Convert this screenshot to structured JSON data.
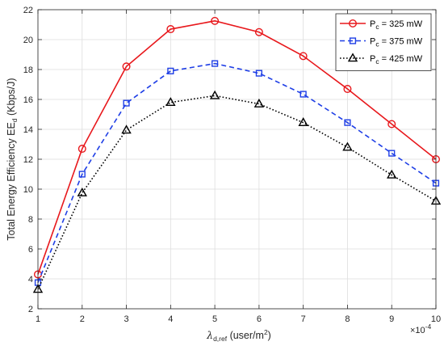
{
  "chart_data": {
    "type": "line",
    "xlabel": {
      "base": "λ",
      "sub": "d,ref",
      "text": " (user/m",
      "sup": "2",
      "end": ")"
    },
    "ylabel": {
      "text": "Total Energy Efficiency EE",
      "sub": "d",
      "end": " (Kbps/J)"
    },
    "x_multiplier": {
      "base": "×10",
      "exp": "-4"
    },
    "x": [
      1,
      2,
      3,
      4,
      5,
      6,
      7,
      8,
      9,
      10
    ],
    "xlim": [
      1,
      10
    ],
    "ylim": [
      2,
      22
    ],
    "xticks": [
      "1",
      "2",
      "3",
      "4",
      "5",
      "6",
      "7",
      "8",
      "9",
      "10"
    ],
    "yticks": [
      "2",
      "4",
      "6",
      "8",
      "10",
      "12",
      "14",
      "16",
      "18",
      "20",
      "22"
    ],
    "grid": true,
    "legend_position": "top-right",
    "series": [
      {
        "name": {
          "base": "P",
          "sub": "c",
          "rest": " = 325 mW"
        },
        "color": "#e8181c",
        "marker": "circle",
        "line": "solid",
        "values": [
          4.3,
          12.7,
          18.2,
          20.7,
          21.25,
          20.5,
          18.9,
          16.7,
          14.35,
          12.0
        ]
      },
      {
        "name": {
          "base": "P",
          "sub": "c",
          "rest": " = 375 mW"
        },
        "color": "#1f3fe6",
        "marker": "square",
        "line": "dashed",
        "values": [
          3.75,
          11.0,
          15.75,
          17.9,
          18.4,
          17.75,
          16.35,
          14.45,
          12.4,
          10.4
        ]
      },
      {
        "name": {
          "base": "P",
          "sub": "c",
          "rest": " = 425 mW"
        },
        "color": "#000000",
        "marker": "triangle",
        "line": "dotted",
        "values": [
          3.3,
          9.75,
          13.95,
          15.8,
          16.25,
          15.7,
          14.45,
          12.8,
          10.95,
          9.2
        ]
      }
    ]
  }
}
